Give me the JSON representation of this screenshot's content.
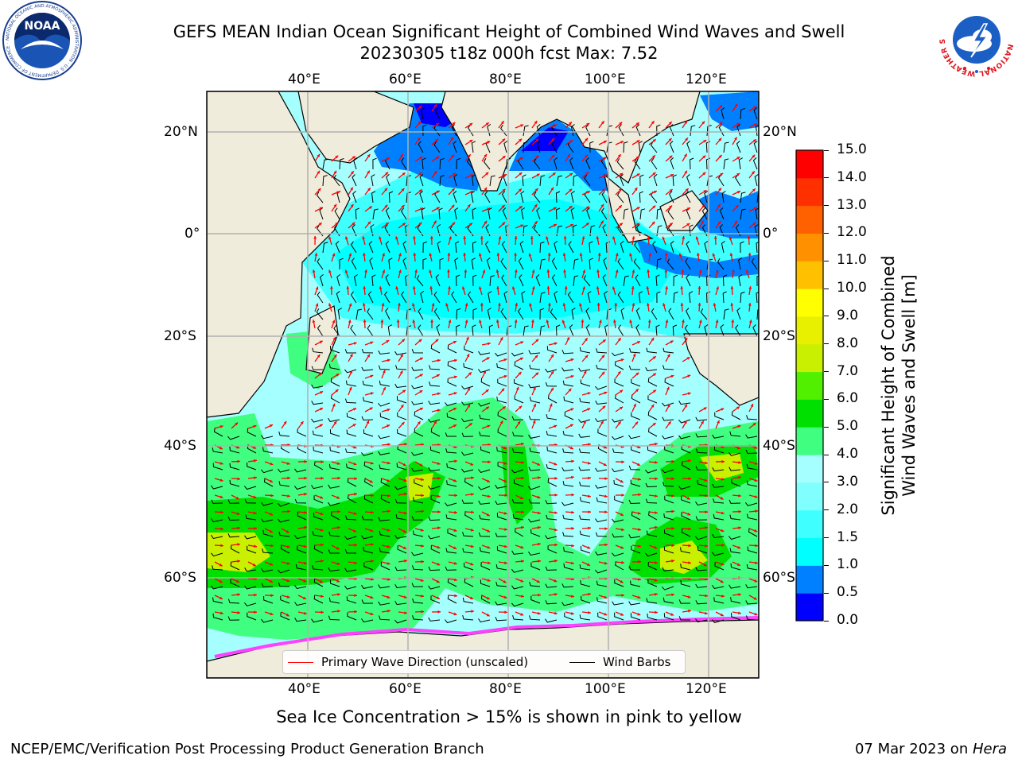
{
  "title": {
    "line1": "GEFS MEAN Indian Ocean Significant Height of Combined Wind Waves and Swell",
    "line2": "20230305 t18z 000h fcst   Max: 7.52"
  },
  "map": {
    "lon_ticks": [
      "40°E",
      "60°E",
      "80°E",
      "100°E",
      "120°E"
    ],
    "lat_ticks": [
      "20°N",
      "0°",
      "20°S",
      "40°S",
      "60°S"
    ],
    "land_color": "#efecdc",
    "gridline_color": "#b0b0b0"
  },
  "colorbar": {
    "label_line1": "Significant Height of Combined",
    "label_line2": "Wind Waves and Swell [m]",
    "ticks": [
      "0.0",
      "0.5",
      "1.0",
      "1.5",
      "2.0",
      "3.0",
      "4.0",
      "5.0",
      "6.0",
      "7.0",
      "8.0",
      "9.0",
      "10.0",
      "11.0",
      "12.0",
      "13.0",
      "14.0",
      "15.0"
    ],
    "colors": [
      "#0000ff",
      "#0080ff",
      "#00ffff",
      "#40ffff",
      "#80ffff",
      "#a6ffff",
      "#40ff80",
      "#00e000",
      "#50f000",
      "#c8f000",
      "#e8f000",
      "#ffff00",
      "#ffc000",
      "#ff9000",
      "#ff6000",
      "#ff3000",
      "#ff0000"
    ]
  },
  "legend": {
    "wave_label": "Primary Wave Direction (unscaled)",
    "wind_label": "Wind Barbs",
    "wave_color": "#ff0000",
    "wind_color": "#000000"
  },
  "caption": "Sea Ice Concentration > 15% is shown in pink to yellow",
  "footer": {
    "left": "NCEP/EMC/Verification Post Processing Product Generation Branch",
    "right_date": "07 Mar 2023 on ",
    "right_host": "Hera"
  },
  "logos": {
    "noaa_text": "NOAA",
    "noaa_ring_text": "NATIONAL OCEANIC AND ATMOSPHERIC ADMINISTRATION · U.S. DEPARTMENT OF COMMERCE ·",
    "nws_ring_text": "NATIONAL WEATHER SERVICE"
  }
}
